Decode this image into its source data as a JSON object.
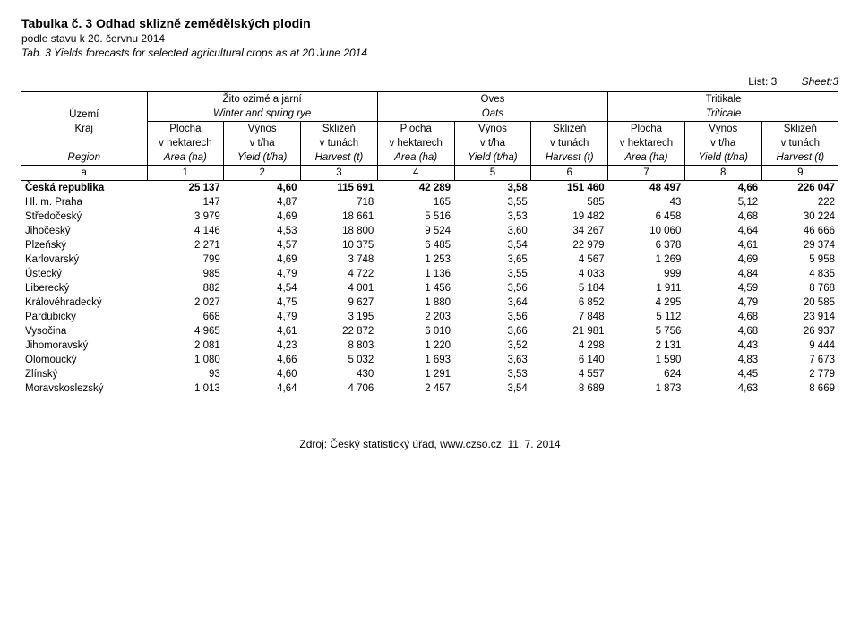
{
  "titles": {
    "cz_title": "Tabulka č. 3  Odhad sklizně zemědělských plodin",
    "cz_subtitle": "podle stavu k 20. červnu 2014",
    "en_title": "Tab. 3 Yields forecasts for selected agricultural crops as at 20 June 2014",
    "list": "List: 3",
    "sheet": "Sheet:3"
  },
  "header": {
    "region_cz": "Území",
    "kraj_cz": "Kraj",
    "region_en": "Region",
    "groups": [
      {
        "cz": "Žito ozimé a jarní",
        "en": "Winter and spring rye"
      },
      {
        "cz": "Oves",
        "en": "Oats"
      },
      {
        "cz": "Tritikale",
        "en": "Triticale"
      }
    ],
    "subcols": {
      "plocha_cz1": "Plocha",
      "plocha_cz2": "v hektarech",
      "vynos_cz1": "Výnos",
      "vynos_cz2": "v t/ha",
      "sklizen_cz1": "Sklizeň",
      "sklizen_cz2": "v tunách",
      "area_en": "Area (ha)",
      "yield_en": "Yield (t/ha)",
      "harvest_en": "Harvest (t)"
    },
    "nums": [
      "a",
      "1",
      "2",
      "3",
      "4",
      "5",
      "6",
      "7",
      "8",
      "9"
    ]
  },
  "rows": [
    {
      "r": "Česká republika",
      "v": [
        "25 137",
        "4,60",
        "115 691",
        "42 289",
        "3,58",
        "151 460",
        "48 497",
        "4,66",
        "226 047"
      ],
      "bold": true
    },
    {
      "r": "Hl. m. Praha",
      "v": [
        "147",
        "4,87",
        "718",
        "165",
        "3,55",
        "585",
        "43",
        "5,12",
        "222"
      ]
    },
    {
      "r": "Středočeský",
      "v": [
        "3 979",
        "4,69",
        "18 661",
        "5 516",
        "3,53",
        "19 482",
        "6 458",
        "4,68",
        "30 224"
      ]
    },
    {
      "r": "Jihočeský",
      "v": [
        "4 146",
        "4,53",
        "18 800",
        "9 524",
        "3,60",
        "34 267",
        "10 060",
        "4,64",
        "46 666"
      ]
    },
    {
      "r": "Plzeňský",
      "v": [
        "2 271",
        "4,57",
        "10 375",
        "6 485",
        "3,54",
        "22 979",
        "6 378",
        "4,61",
        "29 374"
      ]
    },
    {
      "r": "Karlovarský",
      "v": [
        "799",
        "4,69",
        "3 748",
        "1 253",
        "3,65",
        "4 567",
        "1 269",
        "4,69",
        "5 958"
      ]
    },
    {
      "r": "Ústecký",
      "v": [
        "985",
        "4,79",
        "4 722",
        "1 136",
        "3,55",
        "4 033",
        "999",
        "4,84",
        "4 835"
      ]
    },
    {
      "r": "Liberecký",
      "v": [
        "882",
        "4,54",
        "4 001",
        "1 456",
        "3,56",
        "5 184",
        "1 911",
        "4,59",
        "8 768"
      ]
    },
    {
      "r": "Královéhradecký",
      "v": [
        "2 027",
        "4,75",
        "9 627",
        "1 880",
        "3,64",
        "6 852",
        "4 295",
        "4,79",
        "20 585"
      ]
    },
    {
      "r": "Pardubický",
      "v": [
        "668",
        "4,79",
        "3 195",
        "2 203",
        "3,56",
        "7 848",
        "5 112",
        "4,68",
        "23 914"
      ]
    },
    {
      "r": "Vysočina",
      "v": [
        "4 965",
        "4,61",
        "22 872",
        "6 010",
        "3,66",
        "21 981",
        "5 756",
        "4,68",
        "26 937"
      ]
    },
    {
      "r": "Jihomoravský",
      "v": [
        "2 081",
        "4,23",
        "8 803",
        "1 220",
        "3,52",
        "4 298",
        "2 131",
        "4,43",
        "9 444"
      ]
    },
    {
      "r": "Olomoucký",
      "v": [
        "1 080",
        "4,66",
        "5 032",
        "1 693",
        "3,63",
        "6 140",
        "1 590",
        "4,83",
        "7 673"
      ]
    },
    {
      "r": "Zlínský",
      "v": [
        "93",
        "4,60",
        "430",
        "1 291",
        "3,53",
        "4 557",
        "624",
        "4,45",
        "2 779"
      ]
    },
    {
      "r": "Moravskoslezský",
      "v": [
        "1 013",
        "4,64",
        "4 706",
        "2 457",
        "3,54",
        "8 689",
        "1 873",
        "4,63",
        "8 669"
      ]
    }
  ],
  "footer": "Zdroj: Český statistický úřad, www.czso.cz, 11. 7. 2014",
  "style": {
    "background": "#ffffff",
    "text_color": "#000000",
    "border_color": "#000000",
    "font_family": "Arial",
    "title_fontsize": 14,
    "body_fontsize": 12,
    "cell_fontsize": 11.5
  }
}
